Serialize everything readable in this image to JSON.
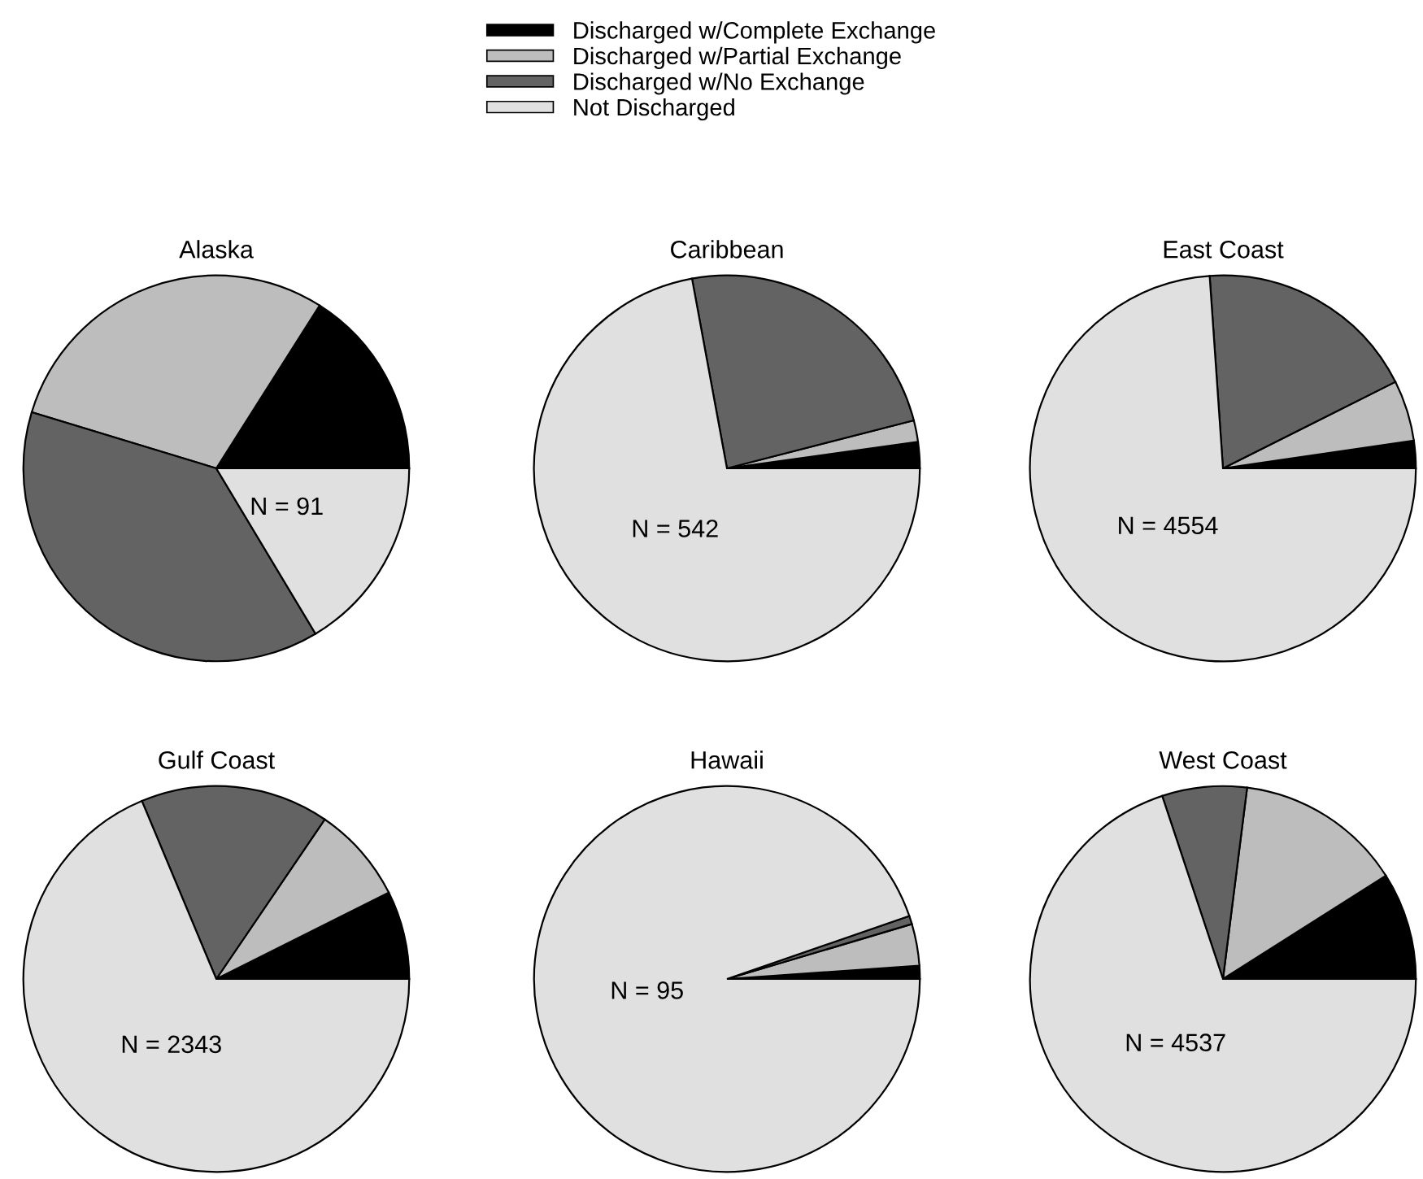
{
  "chart_data": [
    {
      "type": "pie",
      "title": "Alaska",
      "categories": [
        "Discharged w/Complete Exchange",
        "Discharged w/Partial Exchange",
        "Discharged w/No Exchange",
        "Not Discharged"
      ],
      "values": [
        16.0,
        29.3,
        38.3,
        16.4
      ],
      "colors": [
        "#000000",
        "#bdbdbd",
        "#636363",
        "#e0e0e0"
      ],
      "annotations": [
        "N = 91"
      ],
      "legend": "top"
    },
    {
      "type": "pie",
      "title": "Caribbean",
      "categories": [
        null,
        null,
        null,
        null
      ],
      "values": [
        2.2,
        1.8,
        23.9,
        72.1
      ],
      "colors": [
        "#000000",
        "#bdbdbd",
        "#636363",
        "#e0e0e0"
      ],
      "annotations": [
        "N = 542"
      ]
    },
    {
      "type": "pie",
      "title": "East Coast",
      "categories": [
        null,
        null,
        null,
        null
      ],
      "values": [
        2.3,
        5.1,
        18.7,
        73.9
      ],
      "colors": [
        "#000000",
        "#bdbdbd",
        "#636363",
        "#e0e0e0"
      ],
      "annotations": [
        "N = 4554"
      ]
    },
    {
      "type": "pie",
      "title": "Gulf Coast",
      "categories": [
        null,
        null,
        null,
        null
      ],
      "values": [
        7.4,
        8.1,
        15.8,
        68.7
      ],
      "colors": [
        "#000000",
        "#bdbdbd",
        "#636363",
        "#e0e0e0"
      ],
      "annotations": [
        "N = 2343"
      ]
    },
    {
      "type": "pie",
      "title": "Hawaii",
      "categories": [
        null,
        null,
        null,
        null
      ],
      "values": [
        1.1,
        3.5,
        0.7,
        94.7
      ],
      "colors": [
        "#000000",
        "#bdbdbd",
        "#636363",
        "#e0e0e0"
      ],
      "annotations": [
        "N = 95"
      ]
    },
    {
      "type": "pie",
      "title": "West Coast",
      "categories": [
        null,
        null,
        null,
        null
      ],
      "values": [
        9.0,
        14.0,
        7.1,
        69.9
      ],
      "colors": [
        "#000000",
        "#bdbdbd",
        "#636363",
        "#e0e0e0"
      ],
      "annotations": [
        "N = 4537"
      ]
    }
  ]
}
